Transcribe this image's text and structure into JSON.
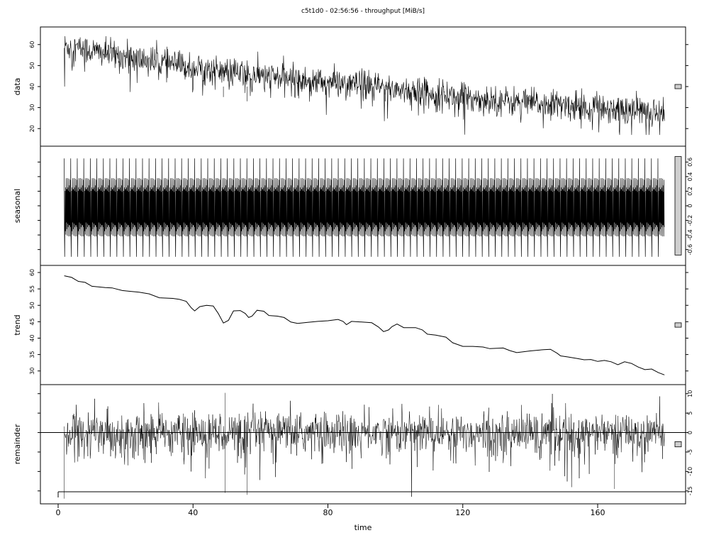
{
  "chart_data": {
    "type": "line",
    "title": "c5t1d0 - 02:56:56 - throughput [MiB/s]",
    "xlabel": "time",
    "xlim": [
      0,
      186
    ],
    "x_ticks": [
      "0",
      "40",
      "80",
      "120",
      "160"
    ],
    "x_tick_values": [
      0,
      40,
      80,
      120,
      160
    ],
    "series_range": [
      1.8,
      179.8
    ],
    "panels": [
      {
        "name": "data",
        "ylim": [
          15,
          65
        ],
        "y_ticks": [
          20,
          30,
          40,
          50,
          60
        ],
        "axis_side": "left",
        "trend": [
          [
            1.8,
            59.5
          ],
          [
            20,
            54
          ],
          [
            40,
            49
          ],
          [
            60,
            45
          ],
          [
            80,
            42
          ],
          [
            100,
            39
          ],
          [
            120,
            35
          ],
          [
            140,
            32
          ],
          [
            160,
            30
          ],
          [
            179.8,
            28
          ]
        ],
        "noise_sd": 3.5,
        "dips": [
          [
            49,
            35
          ],
          [
            56,
            33
          ],
          [
            97,
            33
          ]
        ],
        "first_min": 40
      },
      {
        "name": "seasonal",
        "ylim": [
          -0.72,
          0.72
        ],
        "y_ticks": [
          -0.6,
          -0.4,
          -0.2,
          0.0,
          0.2,
          0.4,
          0.6
        ],
        "axis_side": "right",
        "amplitude": [
          -0.7,
          0.65
        ],
        "cycles": 92
      },
      {
        "name": "trend",
        "ylim": [
          28,
          60
        ],
        "y_ticks": [
          30,
          35,
          40,
          45,
          50,
          55,
          60
        ],
        "axis_side": "left",
        "points": [
          [
            1.8,
            59
          ],
          [
            4,
            58.5
          ],
          [
            6,
            57.3
          ],
          [
            8,
            57
          ],
          [
            10,
            55.8
          ],
          [
            14,
            55.4
          ],
          [
            16,
            55.3
          ],
          [
            19,
            54.5
          ],
          [
            21,
            54.3
          ],
          [
            24,
            54
          ],
          [
            27,
            53.5
          ],
          [
            30,
            52.3
          ],
          [
            34,
            52.1
          ],
          [
            36,
            51.8
          ],
          [
            38,
            51.2
          ],
          [
            39.5,
            49.2
          ],
          [
            40.5,
            48.3
          ],
          [
            42,
            49.6
          ],
          [
            44,
            50
          ],
          [
            46,
            49.8
          ],
          [
            47.5,
            47.5
          ],
          [
            49,
            44.6
          ],
          [
            50.5,
            45.4
          ],
          [
            52,
            48.3
          ],
          [
            54,
            48.4
          ],
          [
            55.5,
            47.5
          ],
          [
            56.5,
            46.3
          ],
          [
            57.5,
            46.7
          ],
          [
            59,
            48.5
          ],
          [
            61,
            48.2
          ],
          [
            62.5,
            46.9
          ],
          [
            65,
            46.7
          ],
          [
            67,
            46.3
          ],
          [
            69,
            44.9
          ],
          [
            71,
            44.5
          ],
          [
            74,
            44.8
          ],
          [
            77,
            45.1
          ],
          [
            80,
            45.3
          ],
          [
            83,
            45.7
          ],
          [
            84.5,
            45.1
          ],
          [
            85.5,
            44.1
          ],
          [
            87,
            45.1
          ],
          [
            90,
            44.9
          ],
          [
            93,
            44.7
          ],
          [
            95,
            43.4
          ],
          [
            96.5,
            42
          ],
          [
            98,
            42.5
          ],
          [
            99,
            43.5
          ],
          [
            100.5,
            44.3
          ],
          [
            102.5,
            43.2
          ],
          [
            106,
            43.2
          ],
          [
            108,
            42.5
          ],
          [
            109.5,
            41.2
          ],
          [
            112,
            40.9
          ],
          [
            115,
            40.3
          ],
          [
            117,
            38.6
          ],
          [
            120,
            37.5
          ],
          [
            123,
            37.5
          ],
          [
            126,
            37.3
          ],
          [
            128,
            36.8
          ],
          [
            132,
            37
          ],
          [
            134,
            36.2
          ],
          [
            136,
            35.6
          ],
          [
            140,
            36.1
          ],
          [
            144,
            36.5
          ],
          [
            146,
            36.6
          ],
          [
            148,
            35.4
          ],
          [
            149,
            34.6
          ],
          [
            151,
            34.3
          ],
          [
            154,
            33.8
          ],
          [
            156,
            33.4
          ],
          [
            158,
            33.5
          ],
          [
            160,
            32.9
          ],
          [
            162,
            33.2
          ],
          [
            164,
            32.8
          ],
          [
            166,
            31.9
          ],
          [
            168,
            32.8
          ],
          [
            170,
            32.3
          ],
          [
            172,
            31.2
          ],
          [
            174,
            30.4
          ],
          [
            176,
            30.6
          ],
          [
            178,
            29.5
          ],
          [
            179.8,
            28.8
          ]
        ]
      },
      {
        "name": "remainder",
        "ylim": [
          -16.5,
          10.5
        ],
        "y_ticks": [
          -15,
          -10,
          -5,
          0,
          5,
          10
        ],
        "axis_side": "right",
        "noise_sd": 2.6,
        "spikes": [
          [
            49.5,
            10.2
          ],
          [
            49.5,
            -15.5
          ],
          [
            56,
            -16
          ],
          [
            1.8,
            -17
          ],
          [
            165,
            -14.5
          ]
        ],
        "zero_line": true
      }
    ]
  }
}
